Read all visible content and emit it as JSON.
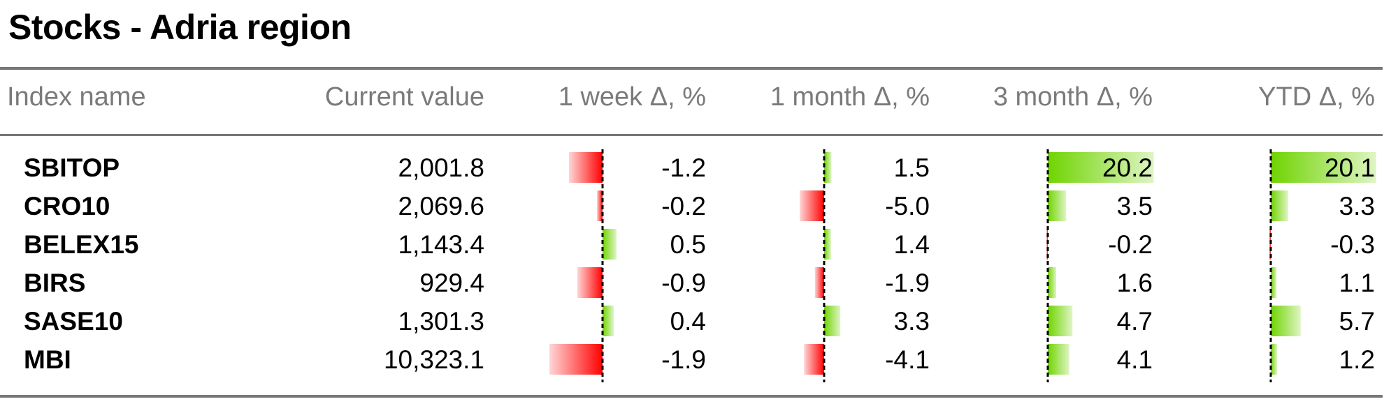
{
  "title": "Stocks - Adria region",
  "headers": {
    "index_name": "Index name",
    "current_value": "Current value",
    "week": "1 week Δ, %",
    "month": "1 month Δ, %",
    "three_month": "3 month Δ, %",
    "ytd": "YTD Δ, %"
  },
  "colors": {
    "positive": "#6fd400",
    "negative": "#ff0000",
    "zero_line": "#000000",
    "rule": "#777777"
  },
  "chart_data": {
    "type": "table",
    "title": "Stocks - Adria region",
    "columns": [
      "Index name",
      "Current value",
      "1 week Δ, %",
      "1 month Δ, %",
      "3 month Δ, %",
      "YTD Δ, %"
    ],
    "rows": [
      {
        "name": "SBITOP",
        "current": "2,001.8",
        "week": "-1.2",
        "month": "1.5",
        "three_month": "20.2",
        "ytd": "20.1"
      },
      {
        "name": "CRO10",
        "current": "2,069.6",
        "week": "-0.2",
        "month": "-5.0",
        "three_month": "3.5",
        "ytd": "3.3"
      },
      {
        "name": "BELEX15",
        "current": "1,143.4",
        "week": "0.5",
        "month": "1.4",
        "three_month": "-0.2",
        "ytd": "-0.3"
      },
      {
        "name": "BIRS",
        "current": "929.4",
        "week": "-0.9",
        "month": "-1.9",
        "three_month": "1.6",
        "ytd": "1.1"
      },
      {
        "name": "SASE10",
        "current": "1,301.3",
        "week": "0.4",
        "month": "3.3",
        "three_month": "4.7",
        "ytd": "5.7"
      },
      {
        "name": "MBI",
        "current": "10,323.1",
        "week": "-1.9",
        "month": "-4.1",
        "three_month": "4.1",
        "ytd": "1.2"
      }
    ]
  }
}
